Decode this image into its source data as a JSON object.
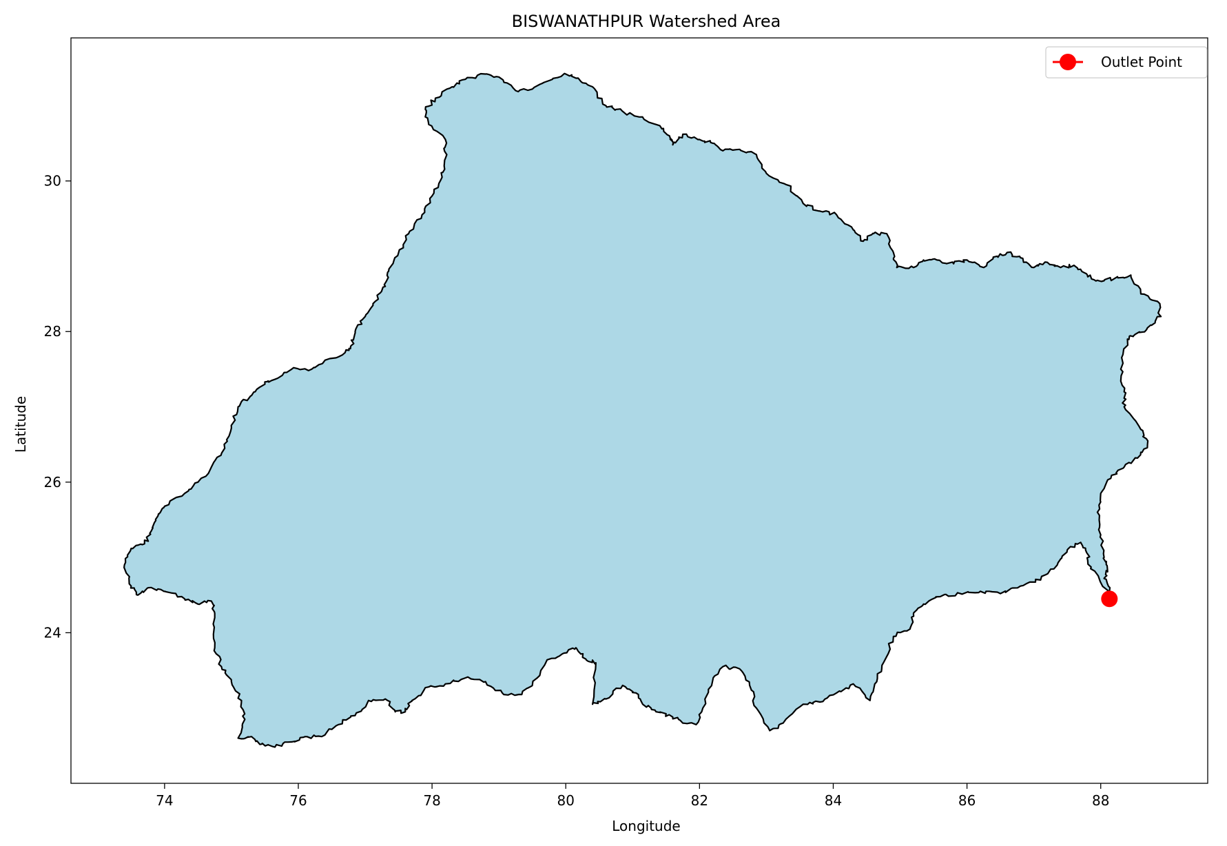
{
  "chart_data": {
    "type": "map",
    "title": "BISWANATHPUR Watershed Area",
    "xlabel": "Longitude",
    "ylabel": "Latitude",
    "xlim": [
      72.6,
      89.6
    ],
    "ylim": [
      22.0,
      31.9
    ],
    "xticks": [
      74,
      76,
      78,
      80,
      82,
      84,
      86,
      88
    ],
    "yticks": [
      24,
      26,
      28,
      30
    ],
    "grid": false,
    "legend": {
      "placement": "top-right",
      "entries": [
        {
          "label": "Outlet Point",
          "color": "#ff0000",
          "marker": "circle"
        }
      ]
    },
    "watershed": {
      "fill": "#add8e6",
      "edge": "#000000",
      "boundary": [
        [
          73.4,
          24.9
        ],
        [
          73.5,
          25.12
        ],
        [
          73.7,
          25.18
        ],
        [
          73.8,
          25.35
        ],
        [
          73.9,
          25.55
        ],
        [
          74.0,
          25.68
        ],
        [
          74.3,
          25.85
        ],
        [
          74.5,
          26.0
        ],
        [
          74.7,
          26.2
        ],
        [
          74.9,
          26.45
        ],
        [
          75.0,
          26.72
        ],
        [
          75.1,
          27.0
        ],
        [
          75.3,
          27.15
        ],
        [
          75.5,
          27.3
        ],
        [
          75.6,
          27.35
        ],
        [
          75.9,
          27.5
        ],
        [
          76.2,
          27.5
        ],
        [
          76.4,
          27.62
        ],
        [
          76.7,
          27.72
        ],
        [
          76.8,
          27.82
        ],
        [
          76.85,
          28.0
        ],
        [
          77.0,
          28.2
        ],
        [
          77.15,
          28.4
        ],
        [
          77.3,
          28.6
        ],
        [
          77.35,
          28.8
        ],
        [
          77.5,
          29.05
        ],
        [
          77.65,
          29.3
        ],
        [
          77.85,
          29.55
        ],
        [
          78.0,
          29.8
        ],
        [
          78.15,
          30.05
        ],
        [
          78.2,
          30.3
        ],
        [
          78.2,
          30.55
        ],
        [
          77.95,
          30.75
        ],
        [
          77.9,
          30.95
        ],
        [
          78.05,
          31.1
        ],
        [
          78.3,
          31.25
        ],
        [
          78.5,
          31.35
        ],
        [
          78.8,
          31.42
        ],
        [
          79.0,
          31.38
        ],
        [
          79.25,
          31.2
        ],
        [
          79.5,
          31.22
        ],
        [
          79.8,
          31.35
        ],
        [
          80.0,
          31.42
        ],
        [
          80.2,
          31.35
        ],
        [
          80.4,
          31.25
        ],
        [
          80.6,
          31.0
        ],
        [
          80.75,
          30.95
        ],
        [
          81.1,
          30.85
        ],
        [
          81.35,
          30.75
        ],
        [
          81.55,
          30.6
        ],
        [
          81.6,
          30.48
        ],
        [
          81.75,
          30.62
        ],
        [
          82.0,
          30.55
        ],
        [
          82.2,
          30.5
        ],
        [
          82.35,
          30.4
        ],
        [
          82.6,
          30.42
        ],
        [
          82.85,
          30.35
        ],
        [
          83.0,
          30.1
        ],
        [
          83.3,
          29.95
        ],
        [
          83.55,
          29.7
        ],
        [
          83.8,
          29.6
        ],
        [
          84.05,
          29.55
        ],
        [
          84.3,
          29.35
        ],
        [
          84.45,
          29.2
        ],
        [
          84.6,
          29.3
        ],
        [
          84.8,
          29.3
        ],
        [
          84.9,
          29.05
        ],
        [
          84.95,
          28.85
        ],
        [
          85.2,
          28.85
        ],
        [
          85.35,
          28.95
        ],
        [
          85.55,
          28.95
        ],
        [
          85.8,
          28.9
        ],
        [
          86.0,
          28.95
        ],
        [
          86.25,
          28.85
        ],
        [
          86.45,
          29.0
        ],
        [
          86.6,
          29.05
        ],
        [
          86.8,
          28.98
        ],
        [
          87.0,
          28.85
        ],
        [
          87.2,
          28.92
        ],
        [
          87.4,
          28.85
        ],
        [
          87.6,
          28.88
        ],
        [
          87.8,
          28.75
        ],
        [
          87.95,
          28.68
        ],
        [
          88.2,
          28.7
        ],
        [
          88.45,
          28.75
        ],
        [
          88.6,
          28.5
        ],
        [
          88.85,
          28.4
        ],
        [
          88.9,
          28.2
        ],
        [
          88.7,
          28.05
        ],
        [
          88.5,
          27.95
        ],
        [
          88.4,
          27.9
        ],
        [
          88.3,
          27.5
        ],
        [
          88.35,
          27.2
        ],
        [
          88.35,
          27.0
        ],
        [
          88.6,
          26.7
        ],
        [
          88.7,
          26.5
        ],
        [
          88.55,
          26.32
        ],
        [
          88.35,
          26.2
        ],
        [
          88.15,
          26.05
        ],
        [
          88.0,
          25.85
        ],
        [
          87.95,
          25.6
        ],
        [
          88.0,
          25.3
        ],
        [
          88.05,
          25.0
        ],
        [
          88.1,
          24.85
        ],
        [
          88.05,
          24.72
        ],
        [
          88.15,
          24.52
        ],
        [
          87.85,
          24.85
        ],
        [
          87.8,
          25.05
        ],
        [
          87.7,
          25.2
        ],
        [
          87.5,
          25.1
        ],
        [
          87.35,
          24.9
        ],
        [
          87.1,
          24.7
        ],
        [
          86.8,
          24.62
        ],
        [
          86.5,
          24.52
        ],
        [
          86.2,
          24.55
        ],
        [
          85.9,
          24.52
        ],
        [
          85.6,
          24.48
        ],
        [
          85.35,
          24.38
        ],
        [
          85.2,
          24.25
        ],
        [
          85.15,
          24.05
        ],
        [
          84.9,
          23.95
        ],
        [
          84.75,
          23.6
        ],
        [
          84.65,
          23.35
        ],
        [
          84.55,
          23.1
        ],
        [
          84.3,
          23.32
        ],
        [
          84.05,
          23.2
        ],
        [
          83.8,
          23.08
        ],
        [
          83.55,
          23.05
        ],
        [
          83.25,
          22.8
        ],
        [
          83.05,
          22.7
        ],
        [
          82.85,
          23.0
        ],
        [
          82.75,
          23.3
        ],
        [
          82.6,
          23.52
        ],
        [
          82.35,
          23.55
        ],
        [
          82.2,
          23.38
        ],
        [
          82.05,
          23.0
        ],
        [
          81.95,
          22.78
        ],
        [
          81.75,
          22.8
        ],
        [
          81.6,
          22.88
        ],
        [
          81.35,
          22.95
        ],
        [
          81.15,
          23.05
        ],
        [
          81.05,
          23.2
        ],
        [
          80.85,
          23.3
        ],
        [
          80.6,
          23.12
        ],
        [
          80.4,
          23.05
        ],
        [
          80.45,
          23.6
        ],
        [
          80.3,
          23.65
        ],
        [
          80.15,
          23.8
        ],
        [
          79.95,
          23.72
        ],
        [
          79.7,
          23.6
        ],
        [
          79.5,
          23.3
        ],
        [
          79.3,
          23.18
        ],
        [
          79.05,
          23.2
        ],
        [
          78.8,
          23.35
        ],
        [
          78.5,
          23.4
        ],
        [
          78.2,
          23.32
        ],
        [
          77.95,
          23.28
        ],
        [
          77.7,
          23.1
        ],
        [
          77.6,
          22.95
        ],
        [
          77.45,
          22.95
        ],
        [
          77.3,
          23.12
        ],
        [
          77.05,
          23.1
        ],
        [
          76.85,
          22.9
        ],
        [
          76.6,
          22.78
        ],
        [
          76.35,
          22.62
        ],
        [
          76.1,
          22.62
        ],
        [
          75.9,
          22.55
        ],
        [
          75.65,
          22.48
        ],
        [
          75.45,
          22.52
        ],
        [
          75.3,
          22.62
        ],
        [
          75.1,
          22.6
        ],
        [
          75.2,
          22.85
        ],
        [
          75.15,
          23.1
        ],
        [
          75.0,
          23.35
        ],
        [
          74.85,
          23.55
        ],
        [
          74.75,
          23.8
        ],
        [
          74.75,
          24.2
        ],
        [
          74.7,
          24.42
        ],
        [
          74.5,
          24.38
        ],
        [
          74.3,
          24.45
        ],
        [
          74.0,
          24.55
        ],
        [
          73.8,
          24.6
        ],
        [
          73.6,
          24.5
        ],
        [
          73.5,
          24.62
        ]
      ]
    },
    "outlet_point": {
      "lon": 88.13,
      "lat": 24.45,
      "label": "Outlet Point",
      "color": "#ff0000"
    }
  }
}
